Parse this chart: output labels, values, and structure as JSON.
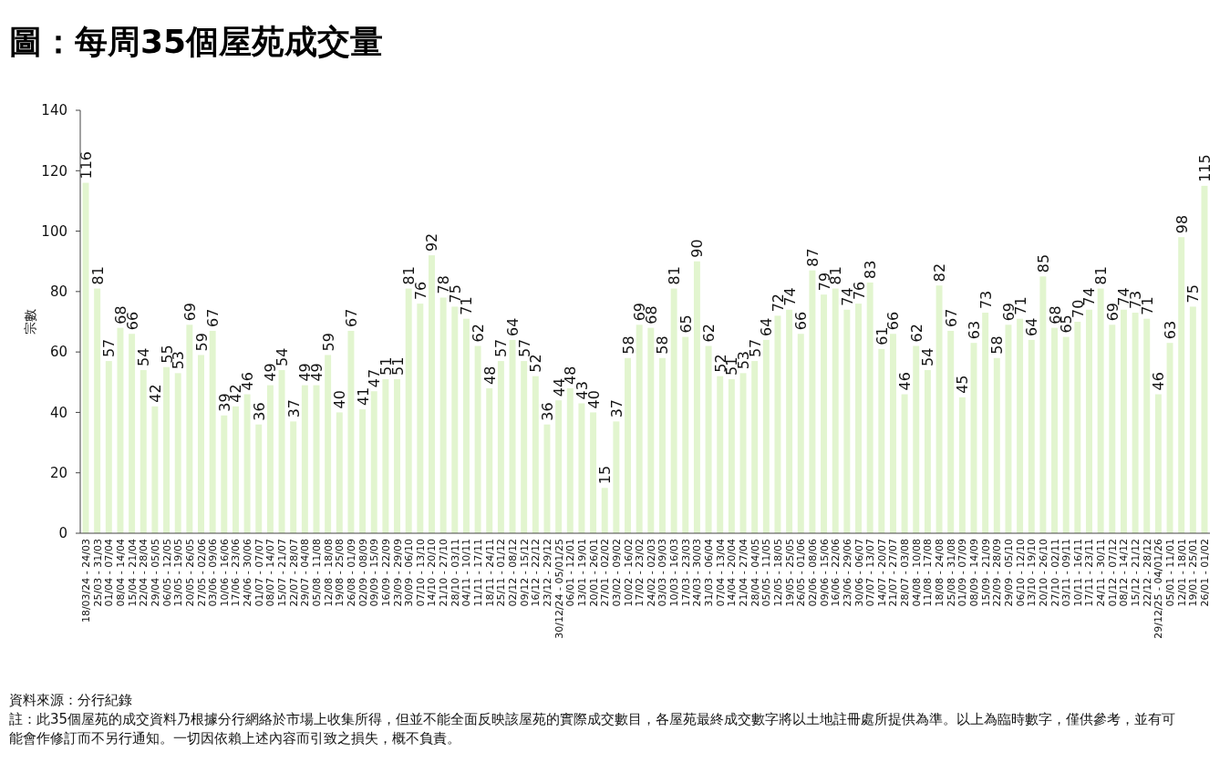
{
  "chart_data": {
    "type": "bar",
    "title": "圖：每周35個屋苑成交量",
    "ylabel": "宗數",
    "categories": [
      "18/03/24 - 24/03",
      "25/03 - 31/03",
      "01/04 - 07/04",
      "08/04 - 14/04",
      "15/04 - 21/04",
      "22/04 - 28/04",
      "29/04 - 05/05",
      "06/05 - 12/05",
      "13/05 - 19/05",
      "20/05 - 26/05",
      "27/05 - 02/06",
      "03/06 - 09/06",
      "10/06 - 16/06",
      "17/06 - 23/06",
      "24/06 - 30/06",
      "01/07 - 07/07",
      "08/07 - 14/07",
      "15/07 - 21/07",
      "22/07 - 28/07",
      "29/07 - 04/08",
      "05/08 - 11/08",
      "12/08 - 18/08",
      "19/08 - 25/08",
      "26/08 - 01/09",
      "02/09 - 08/09",
      "09/09 - 15/09",
      "16/09 - 22/09",
      "23/09 - 29/09",
      "30/09 - 06/10",
      "07/10 - 13/10",
      "14/10 - 20/10",
      "21/10 - 27/10",
      "28/10 - 03/11",
      "04/11 - 10/11",
      "11/11 - 17/11",
      "18/11 - 24/11",
      "25/11 - 01/12",
      "02/12 - 08/12",
      "09/12 - 15/12",
      "16/12 - 22/12",
      "23/12 - 29/12",
      "30/12/24 - 05/01/25",
      "06/01 - 12/01",
      "13/01 - 19/01",
      "20/01 - 26/01",
      "27/01 - 02/02",
      "03/02 - 09/02",
      "10/02 - 16/02",
      "17/02 - 23/02",
      "24/02 - 02/03",
      "03/03 - 09/03",
      "10/03 - 16/03",
      "17/03 - 23/03",
      "24/03 - 30/03",
      "31/03 - 06/04",
      "07/04 - 13/04",
      "14/04 - 20/04",
      "21/04 - 27/04",
      "28/04 - 04/05",
      "05/05 - 11/05",
      "12/05 - 18/05",
      "19/05 - 25/05",
      "26/05 - 01/06",
      "02/06 - 08/06",
      "09/06 - 15/06",
      "16/06 - 22/06",
      "23/06 - 29/06",
      "30/06 - 06/07",
      "07/07 - 13/07",
      "14/07 - 20/07",
      "21/07 - 27/07",
      "28/07 - 03/08",
      "04/08 - 10/08",
      "11/08 - 17/08",
      "18/08 - 24/08",
      "25/08 - 31/08",
      "01/09 - 07/09",
      "08/09 - 14/09",
      "15/09 - 21/09",
      "22/09 - 28/09",
      "29/09 - 05/10",
      "06/10 - 12/10",
      "13/10 - 19/10",
      "20/10 - 26/10",
      "27/10 - 02/11",
      "03/11 - 09/11",
      "10/11 - 16/11",
      "17/11 - 23/11",
      "24/11 - 30/11",
      "01/12 - 07/12",
      "08/12 - 14/12",
      "15/12 - 21/12",
      "22/12 - 28/12",
      "29/12/25 - 04/01/26",
      "05/01 - 11/01",
      "12/01 - 18/01",
      "19/01 - 25/01",
      "26/01 - 01/02"
    ],
    "values": [
      116,
      81,
      57,
      68,
      66,
      54,
      42,
      55,
      53,
      69,
      59,
      67,
      39,
      42,
      46,
      36,
      49,
      54,
      37,
      49,
      49,
      59,
      40,
      67,
      41,
      47,
      51,
      51,
      81,
      76,
      92,
      78,
      75,
      71,
      62,
      48,
      57,
      64,
      57,
      52,
      36,
      44,
      48,
      43,
      40,
      15,
      37,
      58,
      69,
      68,
      58,
      81,
      65,
      90,
      62,
      52,
      51,
      53,
      57,
      64,
      72,
      74,
      66,
      87,
      79,
      81,
      74,
      76,
      83,
      61,
      66,
      46,
      62,
      54,
      82,
      67,
      45,
      63,
      73,
      58,
      69,
      71,
      64,
      85,
      68,
      65,
      70,
      74,
      81,
      69,
      74,
      73,
      71,
      46,
      63,
      98,
      75,
      115
    ],
    "color": "#e2f5cf",
    "data_labels": true,
    "ylim": [
      0,
      140
    ],
    "yticks": [
      0,
      20,
      40,
      60,
      80,
      100,
      120,
      140
    ],
    "grid": false,
    "annotations": [
      "資料來源：分行紀錄",
      "註：此35個屋苑的成交資料乃根據分行網絡於市場上收集所得，但並不能全面反映該屋苑的實際成交數目，各屋苑最終成交數字將以土地註冊處所提供為準。以上為臨時數字，僅供參考，並有可能會作修訂而不另行通知。一切因依賴上述內容而引致之損失，概不負責。"
    ]
  }
}
